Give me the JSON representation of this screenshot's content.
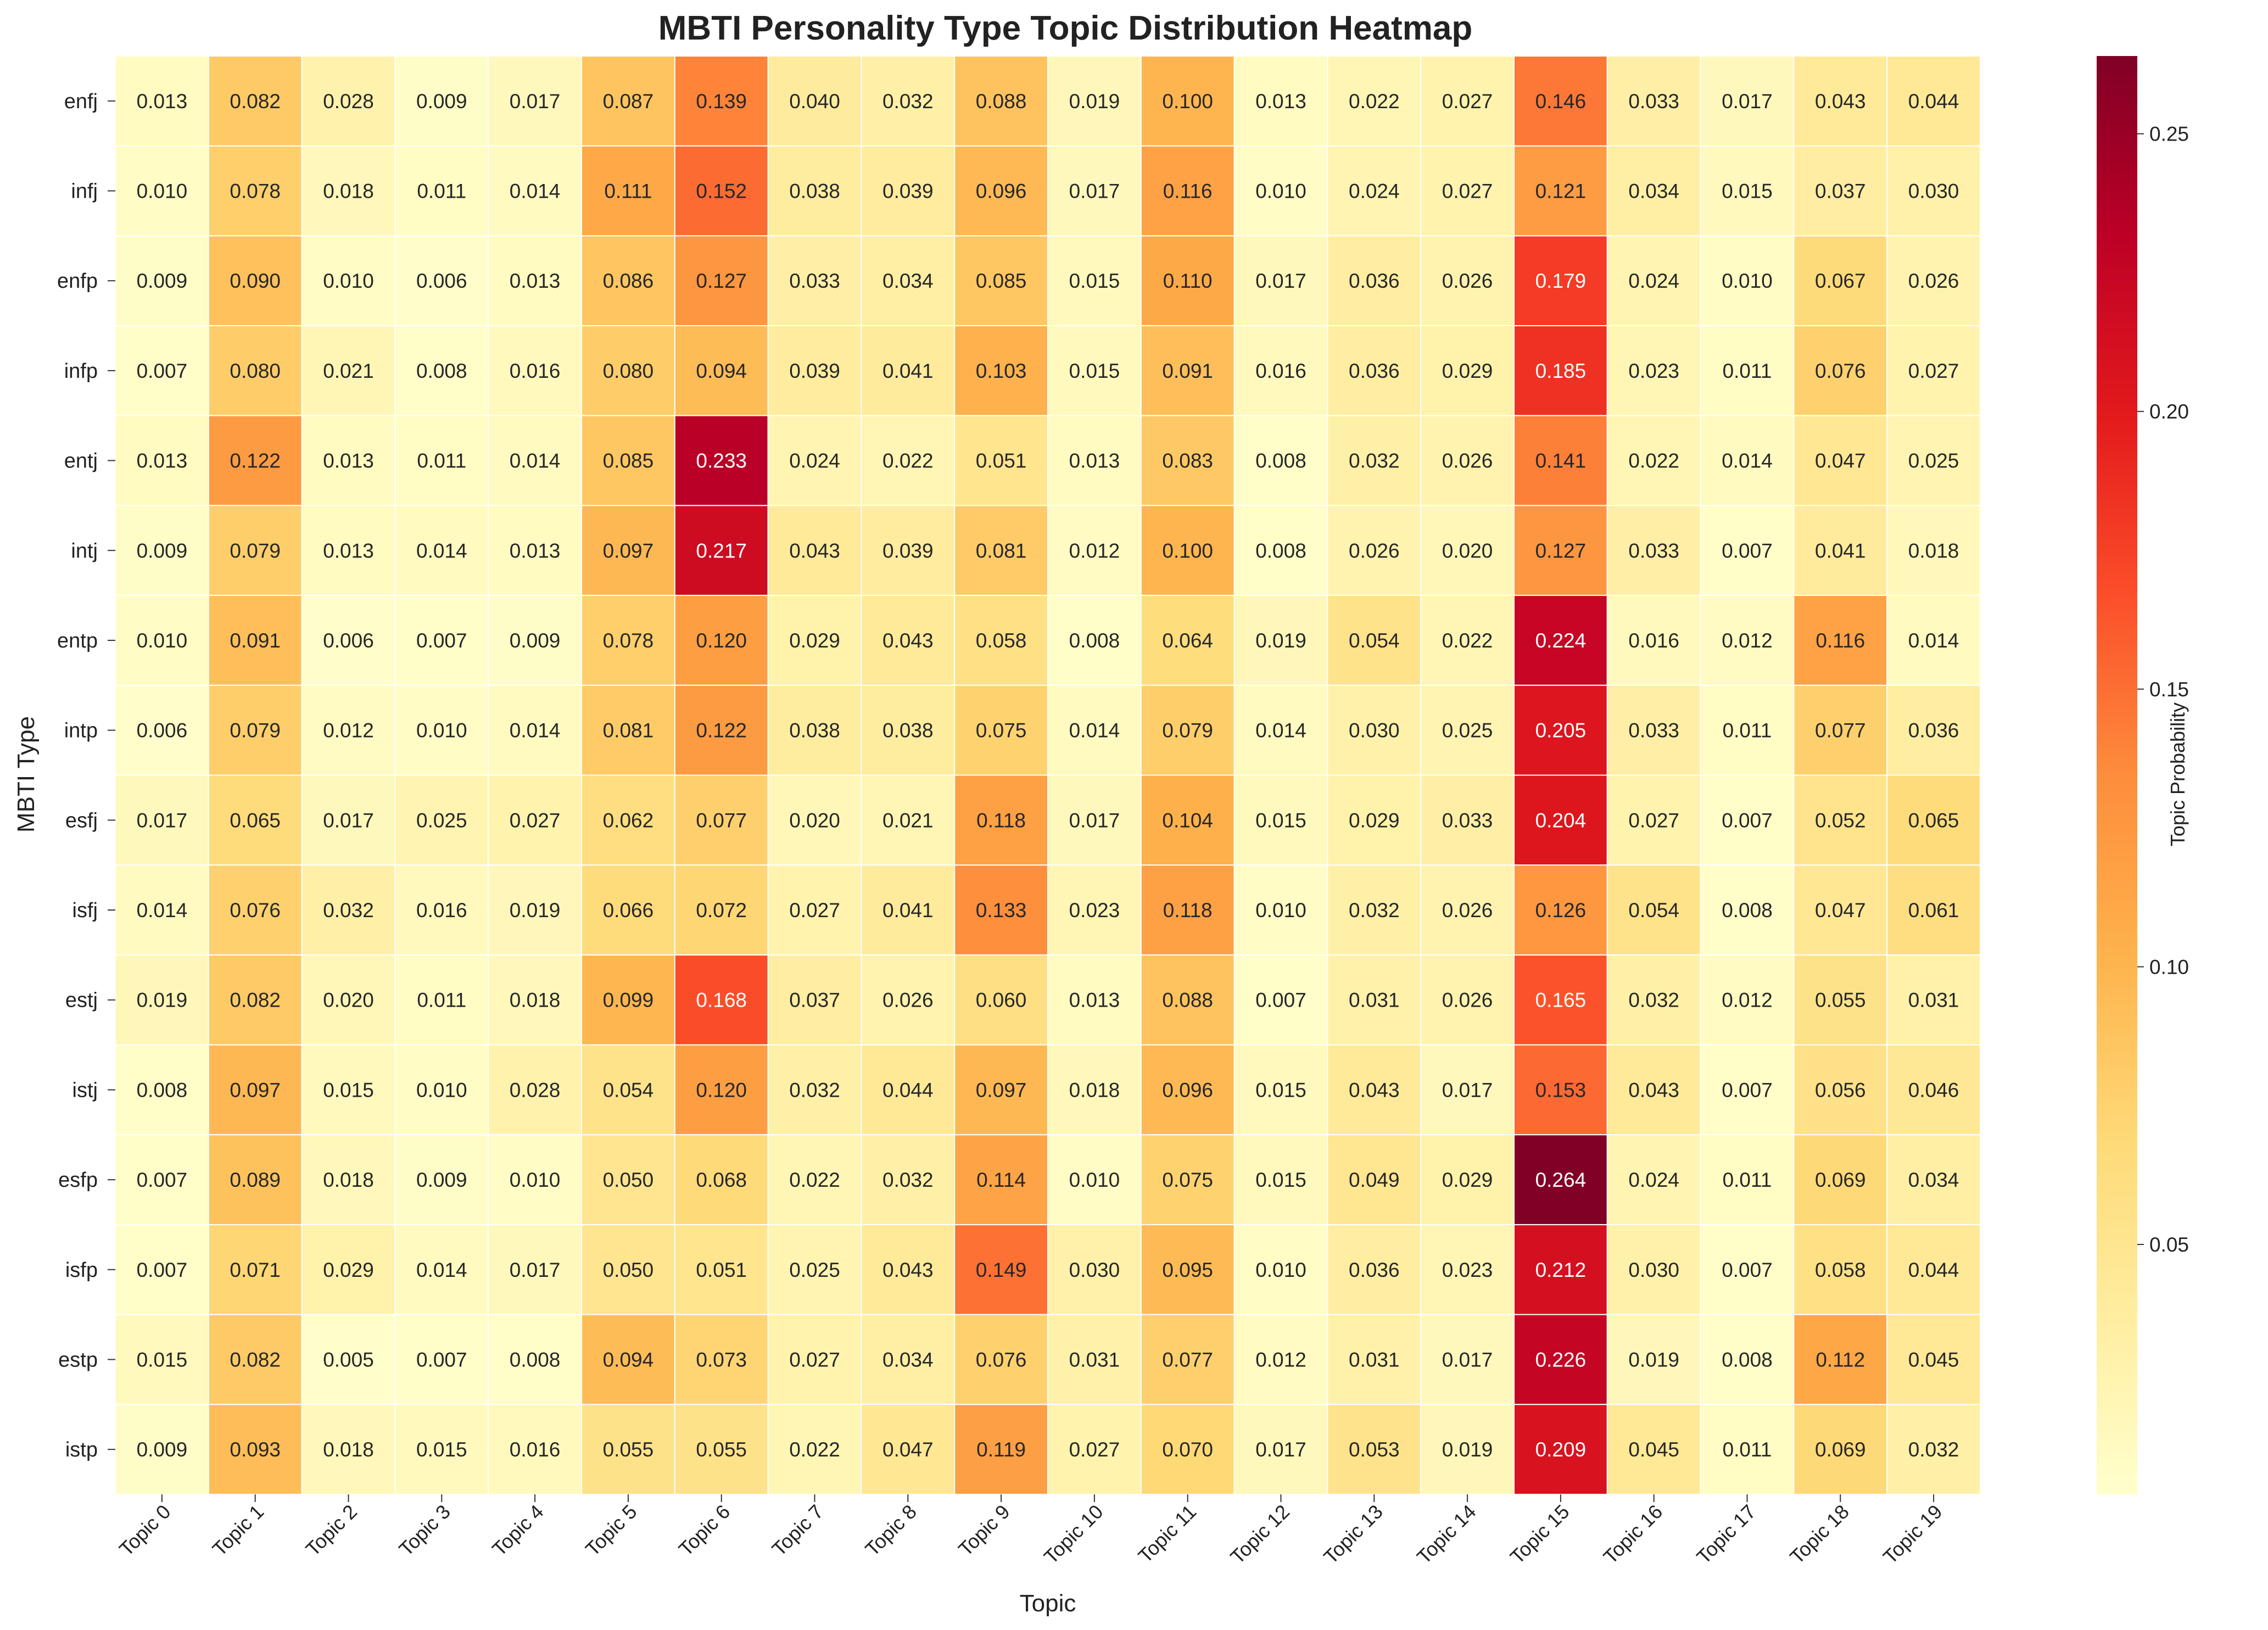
{
  "chart_data": {
    "type": "heatmap",
    "title": "MBTI Personality Type Topic Distribution Heatmap",
    "xlabel": "Topic",
    "ylabel": "MBTI Type",
    "colorbar_label": "Topic Probability",
    "colorbar_ticks": [
      "0.05",
      "0.10",
      "0.15",
      "0.20",
      "0.25"
    ],
    "colorbar_tick_values": [
      0.05,
      0.1,
      0.15,
      0.2,
      0.25
    ],
    "colormap": "YlOrRd",
    "value_range": [
      0.005,
      0.264
    ],
    "colors": [
      "#ffffcc",
      "#ffeda0",
      "#fed976",
      "#feb24c",
      "#fd8d3c",
      "#fc4e2a",
      "#e31a1c",
      "#bd0026",
      "#800026"
    ],
    "columns": [
      "Topic 0",
      "Topic 1",
      "Topic 2",
      "Topic 3",
      "Topic 4",
      "Topic 5",
      "Topic 6",
      "Topic 7",
      "Topic 8",
      "Topic 9",
      "Topic 10",
      "Topic 11",
      "Topic 12",
      "Topic 13",
      "Topic 14",
      "Topic 15",
      "Topic 16",
      "Topic 17",
      "Topic 18",
      "Topic 19"
    ],
    "rows": [
      "enfj",
      "infj",
      "enfp",
      "infp",
      "entj",
      "intj",
      "entp",
      "intp",
      "esfj",
      "isfj",
      "estj",
      "istj",
      "esfp",
      "isfp",
      "estp",
      "istp"
    ],
    "values": [
      [
        0.013,
        0.082,
        0.028,
        0.009,
        0.017,
        0.087,
        0.139,
        0.04,
        0.032,
        0.088,
        0.019,
        0.1,
        0.013,
        0.022,
        0.027,
        0.146,
        0.033,
        0.017,
        0.043,
        0.044
      ],
      [
        0.01,
        0.078,
        0.018,
        0.011,
        0.014,
        0.111,
        0.152,
        0.038,
        0.039,
        0.096,
        0.017,
        0.116,
        0.01,
        0.024,
        0.027,
        0.121,
        0.034,
        0.015,
        0.037,
        0.03
      ],
      [
        0.009,
        0.09,
        0.01,
        0.006,
        0.013,
        0.086,
        0.127,
        0.033,
        0.034,
        0.085,
        0.015,
        0.11,
        0.017,
        0.036,
        0.026,
        0.179,
        0.024,
        0.01,
        0.067,
        0.026
      ],
      [
        0.007,
        0.08,
        0.021,
        0.008,
        0.016,
        0.08,
        0.094,
        0.039,
        0.041,
        0.103,
        0.015,
        0.091,
        0.016,
        0.036,
        0.029,
        0.185,
        0.023,
        0.011,
        0.076,
        0.027
      ],
      [
        0.013,
        0.122,
        0.013,
        0.011,
        0.014,
        0.085,
        0.233,
        0.024,
        0.022,
        0.051,
        0.013,
        0.083,
        0.008,
        0.032,
        0.026,
        0.141,
        0.022,
        0.014,
        0.047,
        0.025
      ],
      [
        0.009,
        0.079,
        0.013,
        0.014,
        0.013,
        0.097,
        0.217,
        0.043,
        0.039,
        0.081,
        0.012,
        0.1,
        0.008,
        0.026,
        0.02,
        0.127,
        0.033,
        0.007,
        0.041,
        0.018
      ],
      [
        0.01,
        0.091,
        0.006,
        0.007,
        0.009,
        0.078,
        0.12,
        0.029,
        0.043,
        0.058,
        0.008,
        0.064,
        0.019,
        0.054,
        0.022,
        0.224,
        0.016,
        0.012,
        0.116,
        0.014
      ],
      [
        0.006,
        0.079,
        0.012,
        0.01,
        0.014,
        0.081,
        0.122,
        0.038,
        0.038,
        0.075,
        0.014,
        0.079,
        0.014,
        0.03,
        0.025,
        0.205,
        0.033,
        0.011,
        0.077,
        0.036
      ],
      [
        0.017,
        0.065,
        0.017,
        0.025,
        0.027,
        0.062,
        0.077,
        0.02,
        0.021,
        0.118,
        0.017,
        0.104,
        0.015,
        0.029,
        0.033,
        0.204,
        0.027,
        0.007,
        0.052,
        0.065
      ],
      [
        0.014,
        0.076,
        0.032,
        0.016,
        0.019,
        0.066,
        0.072,
        0.027,
        0.041,
        0.133,
        0.023,
        0.118,
        0.01,
        0.032,
        0.026,
        0.126,
        0.054,
        0.008,
        0.047,
        0.061
      ],
      [
        0.019,
        0.082,
        0.02,
        0.011,
        0.018,
        0.099,
        0.168,
        0.037,
        0.026,
        0.06,
        0.013,
        0.088,
        0.007,
        0.031,
        0.026,
        0.165,
        0.032,
        0.012,
        0.055,
        0.031
      ],
      [
        0.008,
        0.097,
        0.015,
        0.01,
        0.028,
        0.054,
        0.12,
        0.032,
        0.044,
        0.097,
        0.018,
        0.096,
        0.015,
        0.043,
        0.017,
        0.153,
        0.043,
        0.007,
        0.056,
        0.046
      ],
      [
        0.007,
        0.089,
        0.018,
        0.009,
        0.01,
        0.05,
        0.068,
        0.022,
        0.032,
        0.114,
        0.01,
        0.075,
        0.015,
        0.049,
        0.029,
        0.264,
        0.024,
        0.011,
        0.069,
        0.034
      ],
      [
        0.007,
        0.071,
        0.029,
        0.014,
        0.017,
        0.05,
        0.051,
        0.025,
        0.043,
        0.149,
        0.03,
        0.095,
        0.01,
        0.036,
        0.023,
        0.212,
        0.03,
        0.007,
        0.058,
        0.044
      ],
      [
        0.015,
        0.082,
        0.005,
        0.007,
        0.008,
        0.094,
        0.073,
        0.027,
        0.034,
        0.076,
        0.031,
        0.077,
        0.012,
        0.031,
        0.017,
        0.226,
        0.019,
        0.008,
        0.112,
        0.045
      ],
      [
        0.009,
        0.093,
        0.018,
        0.015,
        0.016,
        0.055,
        0.055,
        0.022,
        0.047,
        0.119,
        0.027,
        0.07,
        0.017,
        0.053,
        0.019,
        0.209,
        0.045,
        0.011,
        0.069,
        0.032
      ]
    ]
  }
}
